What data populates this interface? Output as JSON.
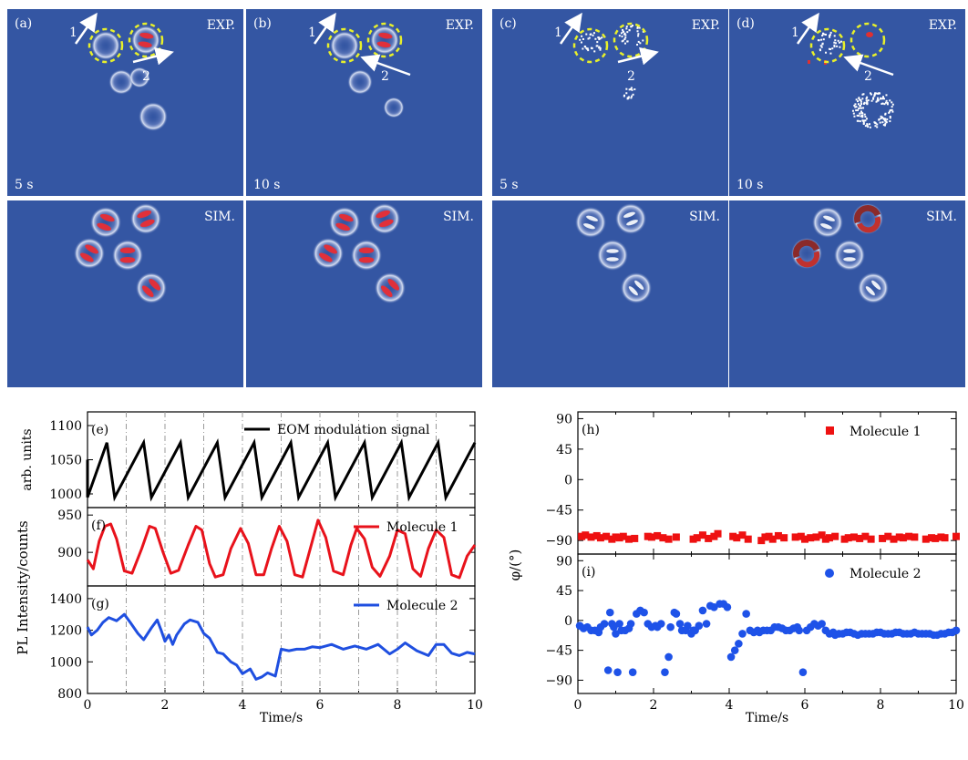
{
  "colors": {
    "panel_bg": "#3456a3",
    "ring": "#c9d4ee",
    "lobe": "#e0303a",
    "dashed": "#e8f02a",
    "arrow": "#ffffff",
    "eom": "#000000",
    "mol1": "#e8121b",
    "mol2": "#1f4fe0",
    "mol1_scatter": "#ee1111",
    "mol2_scatter": "#1e52e8"
  },
  "images": {
    "top_left": [
      {
        "label": "(a)",
        "tag": "EXP.",
        "time": "5 s"
      },
      {
        "label": "(b)",
        "tag": "EXP.",
        "time": "10 s"
      }
    ],
    "top_right": [
      {
        "label": "(c)",
        "tag": "EXP.",
        "time": "5 s"
      },
      {
        "label": "(d)",
        "tag": "EXP.",
        "time": "10 s"
      }
    ],
    "sim_tag": "SIM.",
    "arrow_labels": [
      "1",
      "2"
    ]
  },
  "chart_data": [
    {
      "panel": "(e)",
      "type": "line",
      "series": [
        {
          "name": "EOM modulation signal",
          "shape": "sawtooth",
          "period_s": 0.95,
          "min": 995,
          "max": 1075,
          "fall_duration_s": 0.2
        }
      ],
      "xlim": [
        0,
        10
      ],
      "ylim": [
        980,
        1120
      ],
      "yticks": [
        "1000",
        "1050",
        "1100"
      ],
      "ylabel": "arb. units"
    },
    {
      "panel": "(f)",
      "type": "line",
      "series": [
        {
          "name": "Molecule 1",
          "x": [
            0,
            0.15,
            0.3,
            0.45,
            0.6,
            0.75,
            0.95,
            1.15,
            1.4,
            1.6,
            1.75,
            1.95,
            2.15,
            2.35,
            2.6,
            2.8,
            2.95,
            3.15,
            3.3,
            3.5,
            3.7,
            3.95,
            4.15,
            4.35,
            4.55,
            4.75,
            4.95,
            5.15,
            5.35,
            5.55,
            5.75,
            5.95,
            6.15,
            6.35,
            6.6,
            6.8,
            6.95,
            7.15,
            7.35,
            7.55,
            7.8,
            8.0,
            8.2,
            8.4,
            8.6,
            8.8,
            9.0,
            9.2,
            9.4,
            9.6,
            9.8,
            10.0
          ],
          "y": [
            890,
            878,
            915,
            935,
            938,
            918,
            875,
            872,
            905,
            935,
            932,
            900,
            872,
            876,
            910,
            935,
            930,
            885,
            867,
            870,
            905,
            932,
            912,
            870,
            870,
            905,
            935,
            915,
            870,
            867,
            905,
            943,
            920,
            875,
            870,
            910,
            932,
            918,
            880,
            868,
            895,
            930,
            925,
            878,
            868,
            905,
            930,
            920,
            870,
            866,
            895,
            910
          ]
        }
      ],
      "xlim": [
        0,
        10
      ],
      "ylim": [
        855,
        960
      ],
      "yticks": [
        "900",
        "950"
      ]
    },
    {
      "panel": "(g)",
      "type": "line",
      "series": [
        {
          "name": "Molecule 2",
          "x": [
            0,
            0.1,
            0.25,
            0.4,
            0.55,
            0.75,
            0.95,
            1.1,
            1.3,
            1.45,
            1.65,
            1.8,
            1.9,
            2.0,
            2.1,
            2.2,
            2.3,
            2.5,
            2.65,
            2.85,
            3.0,
            3.15,
            3.35,
            3.5,
            3.7,
            3.85,
            4.0,
            4.2,
            4.35,
            4.5,
            4.65,
            4.85,
            5.0,
            5.2,
            5.4,
            5.6,
            5.8,
            6.0,
            6.3,
            6.6,
            6.9,
            7.2,
            7.5,
            7.8,
            8.0,
            8.2,
            8.5,
            8.8,
            9.0,
            9.2,
            9.4,
            9.6,
            9.8,
            10.0
          ],
          "y": [
            1220,
            1170,
            1200,
            1250,
            1280,
            1260,
            1300,
            1250,
            1180,
            1140,
            1215,
            1265,
            1200,
            1130,
            1170,
            1110,
            1170,
            1240,
            1265,
            1250,
            1180,
            1150,
            1060,
            1050,
            1000,
            980,
            925,
            955,
            890,
            905,
            930,
            910,
            1080,
            1070,
            1080,
            1080,
            1095,
            1090,
            1110,
            1080,
            1100,
            1080,
            1110,
            1050,
            1080,
            1120,
            1070,
            1040,
            1110,
            1110,
            1055,
            1040,
            1060,
            1050
          ]
        }
      ],
      "xlim": [
        0,
        10
      ],
      "ylim": [
        800,
        1480
      ],
      "yticks": [
        "800",
        "1000",
        "1200",
        "1400"
      ],
      "xticks": [
        "0",
        "2",
        "4",
        "6",
        "8",
        "10"
      ],
      "xlabel": "Time/s"
    },
    {
      "panel": "(h)",
      "type": "scatter",
      "series": [
        {
          "name": "Molecule 1",
          "x": [
            0.1,
            0.2,
            0.35,
            0.5,
            0.6,
            0.75,
            0.9,
            1.0,
            1.1,
            1.2,
            1.35,
            1.5,
            1.85,
            1.95,
            2.1,
            2.25,
            2.4,
            2.6,
            3.05,
            3.15,
            3.3,
            3.45,
            3.6,
            3.7,
            4.1,
            4.2,
            4.35,
            4.5,
            4.85,
            4.95,
            5.05,
            5.15,
            5.3,
            5.45,
            5.75,
            5.9,
            6.0,
            6.15,
            6.3,
            6.45,
            6.55,
            6.65,
            6.8,
            7.05,
            7.15,
            7.3,
            7.45,
            7.6,
            7.75,
            8.05,
            8.2,
            8.35,
            8.5,
            8.6,
            8.75,
            8.9,
            9.2,
            9.35,
            9.45,
            9.6,
            9.7,
            10.0
          ],
          "y": [
            -84,
            -82,
            -85,
            -83,
            -86,
            -84,
            -88,
            -85,
            -86,
            -84,
            -88,
            -87,
            -84,
            -85,
            -83,
            -86,
            -88,
            -85,
            -88,
            -86,
            -82,
            -87,
            -84,
            -80,
            -84,
            -86,
            -82,
            -88,
            -90,
            -85,
            -84,
            -88,
            -83,
            -86,
            -85,
            -84,
            -88,
            -86,
            -85,
            -82,
            -88,
            -86,
            -84,
            -88,
            -86,
            -85,
            -87,
            -84,
            -88,
            -87,
            -84,
            -88,
            -85,
            -86,
            -84,
            -85,
            -88,
            -86,
            -87,
            -85,
            -86,
            -84
          ]
        }
      ],
      "xlim": [
        0,
        10
      ],
      "ylim": [
        -110,
        100
      ],
      "yticks": [
        "−90",
        "−45",
        "0",
        "45",
        "90"
      ]
    },
    {
      "panel": "(i)",
      "type": "scatter",
      "series": [
        {
          "name": "Molecule 2",
          "x": [
            0.05,
            0.15,
            0.25,
            0.35,
            0.45,
            0.55,
            0.6,
            0.7,
            0.8,
            0.85,
            0.9,
            0.95,
            1.0,
            1.05,
            1.1,
            1.15,
            1.25,
            1.35,
            1.4,
            1.45,
            1.55,
            1.65,
            1.75,
            1.85,
            1.95,
            2.05,
            2.1,
            2.2,
            2.3,
            2.4,
            2.45,
            2.55,
            2.6,
            2.7,
            2.75,
            2.85,
            2.9,
            3.0,
            3.05,
            3.1,
            3.2,
            3.3,
            3.4,
            3.5,
            3.6,
            3.75,
            3.85,
            3.95,
            4.05,
            4.15,
            4.25,
            4.35,
            4.45,
            4.55,
            4.65,
            4.75,
            4.8,
            4.9,
            5.0,
            5.1,
            5.2,
            5.3,
            5.4,
            5.5,
            5.6,
            5.7,
            5.8,
            5.85,
            5.95,
            6.05,
            6.15,
            6.25,
            6.35,
            6.45,
            6.55,
            6.65,
            6.75,
            6.8,
            6.9,
            7.0,
            7.1,
            7.2,
            7.3,
            7.4,
            7.5,
            7.6,
            7.7,
            7.8,
            7.9,
            8.0,
            8.1,
            8.2,
            8.3,
            8.4,
            8.5,
            8.6,
            8.7,
            8.8,
            8.9,
            9.0,
            9.1,
            9.2,
            9.3,
            9.4,
            9.5,
            9.6,
            9.7,
            9.8,
            9.9,
            10.0
          ],
          "y": [
            -8,
            -12,
            -10,
            -15,
            -15,
            -18,
            -10,
            -5,
            -75,
            12,
            -5,
            -10,
            -20,
            -78,
            -5,
            -15,
            -15,
            -12,
            -5,
            -78,
            10,
            15,
            12,
            -5,
            -10,
            -8,
            -10,
            -5,
            -78,
            -55,
            -10,
            12,
            10,
            -5,
            -15,
            -15,
            -8,
            -20,
            -15,
            -15,
            -8,
            15,
            -5,
            22,
            20,
            25,
            25,
            20,
            -55,
            -45,
            -35,
            -20,
            10,
            -15,
            -18,
            -15,
            -18,
            -15,
            -15,
            -15,
            -10,
            -10,
            -12,
            -15,
            -15,
            -12,
            -10,
            -15,
            -78,
            -15,
            -10,
            -5,
            -8,
            -5,
            -15,
            -20,
            -18,
            -22,
            -20,
            -20,
            -18,
            -18,
            -20,
            -22,
            -20,
            -20,
            -20,
            -20,
            -18,
            -18,
            -20,
            -20,
            -20,
            -18,
            -18,
            -20,
            -20,
            -20,
            -18,
            -20,
            -20,
            -20,
            -20,
            -22,
            -22,
            -20,
            -20,
            -18,
            -18,
            -15
          ]
        }
      ],
      "xlim": [
        0,
        10
      ],
      "ylim": [
        -110,
        100
      ],
      "yticks": [
        "−90",
        "−45",
        "0",
        "45",
        "90"
      ],
      "xticks": [
        "0",
        "2",
        "4",
        "6",
        "8",
        "10"
      ],
      "xlabel": "Time/s"
    }
  ],
  "shared": {
    "left_ylabel": "PL Intensity/counts",
    "right_ylabel": "φ/(°)"
  }
}
